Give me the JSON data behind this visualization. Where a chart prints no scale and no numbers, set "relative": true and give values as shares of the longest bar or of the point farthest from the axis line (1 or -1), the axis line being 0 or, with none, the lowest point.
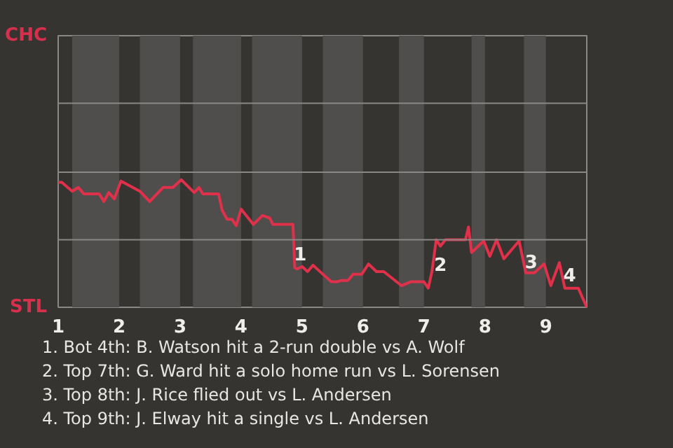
{
  "chart_data": {
    "type": "line",
    "relative": true,
    "x": [
      1.0,
      1.06,
      1.23,
      1.33,
      1.42,
      1.67,
      1.75,
      1.83,
      1.92,
      2.03,
      2.34,
      2.5,
      2.72,
      2.88,
      3.02,
      3.23,
      3.31,
      3.37,
      3.63,
      3.69,
      3.77,
      3.85,
      3.92,
      4.0,
      4.2,
      4.35,
      4.47,
      4.52,
      4.85,
      4.88,
      4.92,
      5.0,
      5.09,
      5.18,
      5.34,
      5.48,
      5.57,
      5.64,
      5.75,
      5.84,
      5.98,
      6.09,
      6.22,
      6.34,
      6.63,
      6.78,
      7.0,
      7.07,
      7.13,
      7.2,
      7.27,
      7.35,
      7.68,
      7.73,
      7.78,
      7.98,
      8.08,
      8.19,
      8.31,
      8.56,
      8.67,
      8.81,
      8.97,
      9.08,
      9.22,
      9.31,
      9.53,
      9.67
    ],
    "series": [
      {
        "color": "#e0304a",
        "values": [
          0.98,
          0.98,
          0.91,
          0.94,
          0.89,
          0.89,
          0.83,
          0.9,
          0.85,
          0.99,
          0.91,
          0.83,
          0.94,
          0.94,
          1,
          0.9,
          0.94,
          0.89,
          0.89,
          0.76,
          0.69,
          0.69,
          0.64,
          0.77,
          0.65,
          0.72,
          0.7,
          0.65,
          0.65,
          0.31,
          0.3,
          0.32,
          0.28,
          0.33,
          0.26,
          0.2,
          0.2,
          0.21,
          0.21,
          0.26,
          0.26,
          0.34,
          0.28,
          0.28,
          0.17,
          0.2,
          0.2,
          0.15,
          0.28,
          0.53,
          0.48,
          0.53,
          0.53,
          0.63,
          0.43,
          0.52,
          0.4,
          0.53,
          0.38,
          0.52,
          0.27,
          0.27,
          0.34,
          0.17,
          0.35,
          0.15,
          0.15,
          0
        ]
      }
    ],
    "xlim": [
      1,
      9.67
    ],
    "xticks": [
      1,
      2,
      3,
      4,
      5,
      6,
      7,
      8,
      9
    ],
    "marker": "none",
    "line_style": "solid",
    "ref_lines": [
      {
        "axis": "y",
        "value": 0.53,
        "color": "#8a8886"
      },
      {
        "axis": "y",
        "value": 1.06,
        "color": "#8a8886"
      },
      {
        "axis": "y",
        "value": 1.6,
        "color": "#8a8886"
      }
    ],
    "bands": [
      {
        "axis": "x",
        "from": 1.23,
        "to": 2,
        "color": "#4f4e4c"
      },
      {
        "axis": "x",
        "from": 2.34,
        "to": 3,
        "color": "#4f4e4c"
      },
      {
        "axis": "x",
        "from": 3.21,
        "to": 4,
        "color": "#4f4e4c"
      },
      {
        "axis": "x",
        "from": 4.18,
        "to": 5,
        "color": "#4f4e4c"
      },
      {
        "axis": "x",
        "from": 5.34,
        "to": 6,
        "color": "#4f4e4c"
      },
      {
        "axis": "x",
        "from": 6.59,
        "to": 7,
        "color": "#4f4e4c"
      },
      {
        "axis": "x",
        "from": 7.78,
        "to": 8,
        "color": "#4f4e4c"
      },
      {
        "axis": "x",
        "from": 8.64,
        "to": 9,
        "color": "#4f4e4c"
      }
    ],
    "annotations": [
      "CHC",
      "STL",
      {
        "text": "1",
        "x": 4.97,
        "y": 0.42
      },
      {
        "text": "2",
        "x": 7.27,
        "y": 0.34
      },
      {
        "text": "3",
        "x": 8.76,
        "y": 0.36
      },
      {
        "text": "4",
        "x": 9.39,
        "y": 0.26
      },
      "1. Bot 4th: B. Watson hit a 2-run double vs A. Wolf",
      "2. Top 7th: G. Ward hit a solo home run vs L. Sorensen",
      "3. Top 8th: J. Rice flied out vs L. Andersen",
      "4. Top 9th: J. Elway hit a single vs L. Andersen"
    ]
  }
}
